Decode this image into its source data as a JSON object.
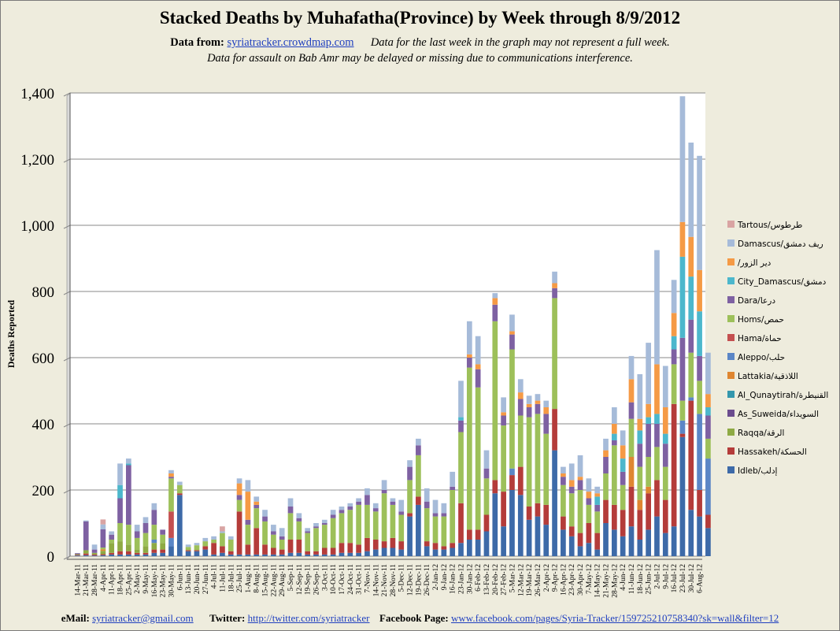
{
  "header": {
    "title": "Stacked Deaths by Muhafatha(Province) by Week through 8/9/2012",
    "data_from_label": "Data from:",
    "data_from_link": "syriatracker.crowdmap.com",
    "note1": "Data for the last week in the graph may not represent a full week.",
    "note2": "Data for assault on Bab Amr may be delayed or missing due to communications interference."
  },
  "footer": {
    "email_label": "eMail:",
    "email": "syriatracker@gmail.com",
    "twitter_label": "Twitter:",
    "twitter": "http://twitter.com/syriatracker",
    "facebook_label": "Facebook  Page:",
    "facebook": "www.facebook.com/pages/Syria-Tracker/159725210758340?sk=wall&filter=12"
  },
  "colors": {
    "Idleb": "#3d6aa8",
    "Hassakeh": "#b43c3a",
    "Raqqa": "#8eaa44",
    "As_Suweida": "#6b4c8e",
    "Al_Qunaytirah": "#3497ad",
    "Lattakia": "#df8631",
    "Aleppo": "#5b86c6",
    "Hama": "#c45050",
    "Homs": "#9dc05a",
    "Dara": "#7e61a2",
    "City_Damascus": "#4cb7cc",
    "Deir_Ezzor": "#f59a45",
    "Damascus": "#a6bbd9",
    "Tartous": "#d9a4a3",
    "plot_bg": "#ffffff",
    "frame_bg": "#eeecdd"
  },
  "chart_data": {
    "type": "bar",
    "stacked": true,
    "title": "Stacked Deaths by Muhafatha(Province) by Week through 8/9/2012",
    "ylabel": "Deaths Reported",
    "xlabel": "",
    "ylim": [
      0,
      1400
    ],
    "yticks": [
      0,
      200,
      400,
      600,
      800,
      1000,
      1200,
      1400
    ],
    "ytick_labels": [
      "0",
      "200",
      "400",
      "600",
      "800",
      "1,000",
      "1,200",
      "1,400"
    ],
    "legend_position": "right",
    "legend": [
      {
        "name": "Tartous/طرطوس",
        "key": "Tartous"
      },
      {
        "name": "Damascus/ريف دمشق",
        "key": "Damascus"
      },
      {
        "name": "/دير الزور",
        "key": "Deir_Ezzor"
      },
      {
        "name": "City_Damascus/دمشق",
        "key": "City_Damascus"
      },
      {
        "name": "Dara/درعا",
        "key": "Dara"
      },
      {
        "name": "Homs/حمص",
        "key": "Homs"
      },
      {
        "name": "Hama/حماة",
        "key": "Hama"
      },
      {
        "name": "Aleppo/حلب",
        "key": "Aleppo"
      },
      {
        "name": "Lattakia/اللاذقية",
        "key": "Lattakia"
      },
      {
        "name": "Al_Qunaytirah/القنيطرة",
        "key": "Al_Qunaytirah"
      },
      {
        "name": "As_Suweida/السويداء",
        "key": "As_Suweida"
      },
      {
        "name": "Raqqa/الرقة",
        "key": "Raqqa"
      },
      {
        "name": "Hassakeh/الحسكة",
        "key": "Hassakeh"
      },
      {
        "name": "Idleb/إدلب",
        "key": "Idleb"
      }
    ],
    "categories": [
      "14-Mar-11",
      "21-Mar-11",
      "28-Mar-11",
      "4-Apr-11",
      "11-Apr-11",
      "18-Apr-11",
      "25-Apr-11",
      "2-May-11",
      "9-May-11",
      "16-May-11",
      "23-May-11",
      "30-May-11",
      "6-Jun-11",
      "13-Jun-11",
      "20-Jun-11",
      "27-Jun-11",
      "4-Jul-11",
      "11-Jul-11",
      "18-Jul-11",
      "25-Jul-11",
      "1-Aug-11",
      "8-Aug-11",
      "15-Aug-11",
      "22-Aug-11",
      "29-Aug-11",
      "5-Sep-11",
      "12-Sep-11",
      "19-Sep-11",
      "26-Sep-11",
      "3-Oct-11",
      "10-Oct-11",
      "17-Oct-11",
      "24-Oct-11",
      "31-Oct-11",
      "7-Nov-11",
      "14-Nov-11",
      "21-Nov-11",
      "28-Nov-11",
      "5-Dec-11",
      "12-Dec-11",
      "19-Dec-11",
      "26-Dec-11",
      "2-Jan-12",
      "9-Jan-12",
      "16-Jan-12",
      "23-Jan-12",
      "30-Jan-12",
      "6-Feb-12",
      "13-Feb-12",
      "20-Feb-12",
      "27-Feb-12",
      "5-Mar-12",
      "12-Mar-12",
      "19-Mar-12",
      "26-Mar-12",
      "2-Apr-12",
      "9-Apr-12",
      "16-Apr-12",
      "23-Apr-12",
      "30-Apr-12",
      "7-May-12",
      "14-May-12",
      "21-May-12",
      "28-May-12",
      "4-Jun-12",
      "11-Jun-12",
      "18-Jun-12",
      "25-Jun-12",
      "2-Jul-12",
      "9-Jul-12",
      "16-Jul-12",
      "23-Jul-12",
      "30-Jul-12",
      "6-Aug-12"
    ],
    "weekly_bars": [
      {
        "Idleb": 2,
        "Hassakeh": 2,
        "Raqqa": 2,
        "Dara": 3
      },
      {
        "Idleb": 3,
        "Hassakeh": 5,
        "Raqqa": 10,
        "Dara": 87,
        "Damascus": 3
      },
      {
        "Idleb": 2,
        "Hassakeh": 3,
        "Raqqa": 5,
        "Dara": 10,
        "Damascus": 15
      },
      {
        "Idleb": 3,
        "Hassakeh": 3,
        "Raqqa": 10,
        "Lattakia": 5,
        "Homs": 5,
        "Dara": 55,
        "Damascus": 15,
        "Tartous": 15
      },
      {
        "Idleb": 5,
        "Hassakeh": 5,
        "Raqqa": 30,
        "Homs": 10,
        "Dara": 15,
        "Damascus": 10
      },
      {
        "Idleb": 5,
        "Hassakeh": 10,
        "Raqqa": 30,
        "Homs": 55,
        "Dara": 75,
        "City_Damascus": 40,
        "Damascus": 65
      },
      {
        "Idleb": 5,
        "Hassakeh": 10,
        "Raqqa": 20,
        "Homs": 60,
        "Dara": 180,
        "City_Damascus": 5,
        "Damascus": 15
      },
      {
        "Idleb": 5,
        "Hassakeh": 5,
        "Raqqa": 10,
        "Homs": 35,
        "Dara": 20,
        "Damascus": 20
      },
      {
        "Idleb": 5,
        "Hassakeh": 5,
        "Raqqa": 20,
        "Homs": 40,
        "Dara": 30,
        "Damascus": 18
      },
      {
        "Idleb": 10,
        "Hassakeh": 10,
        "Raqqa": 20,
        "Aleppo": 10,
        "Homs": 45,
        "Dara": 45,
        "Damascus": 20
      },
      {
        "Idleb": 10,
        "Hassakeh": 10,
        "Raqqa": 20,
        "Homs": 25,
        "Dara": 15
      },
      {
        "Idleb": 30,
        "Aleppo": 25,
        "Hama": 80,
        "Homs": 100,
        "Dara": 5,
        "Deir_Ezzor": 10,
        "Damascus": 10
      },
      {
        "Idleb": 185,
        "Hassakeh": 5,
        "Homs": 25,
        "Damascus": 10
      },
      {
        "Idleb": 15,
        "Hassakeh": 3,
        "Homs": 10,
        "Damascus": 7
      },
      {
        "Idleb": 15,
        "Hassakeh": 3,
        "Homs": 15,
        "Damascus": 7
      },
      {
        "Idleb": 20,
        "Hassakeh": 10,
        "Homs": 15,
        "Damascus": 10
      },
      {
        "Idleb": 5,
        "Hassakeh": 35,
        "Homs": 10,
        "Damascus": 10
      },
      {
        "Idleb": 10,
        "Hassakeh": 20,
        "Homs": 40,
        "Damascus": 5,
        "Tartous": 15
      },
      {
        "Idleb": 5,
        "Hassakeh": 10,
        "Homs": 35,
        "Damascus": 10
      },
      {
        "Idleb": 5,
        "Hassakeh": 130,
        "Homs": 35,
        "Dara": 15,
        "Deir_Ezzor": 35,
        "Damascus": 15
      },
      {
        "Idleb": 5,
        "Hassakeh": 30,
        "Homs": 60,
        "Dara": 15,
        "Deir_Ezzor": 85,
        "Damascus": 35
      },
      {
        "Idleb": 5,
        "Hassakeh": 80,
        "Homs": 60,
        "Dara": 10,
        "Deir_Ezzor": 10,
        "Damascus": 15
      },
      {
        "Idleb": 5,
        "Hassakeh": 30,
        "Homs": 70,
        "Dara": 15,
        "Damascus": 20
      },
      {
        "Idleb": 5,
        "Hassakeh": 20,
        "Homs": 40,
        "Dara": 10,
        "Damascus": 20
      },
      {
        "Idleb": 5,
        "Hassakeh": 15,
        "Homs": 30,
        "Dara": 10,
        "Damascus": 25
      },
      {
        "Idleb": 10,
        "Hassakeh": 40,
        "Homs": 80,
        "Dara": 20,
        "Damascus": 25
      },
      {
        "Idleb": 10,
        "Hassakeh": 40,
        "Homs": 55,
        "Dara": 10,
        "Damascus": 15
      },
      {
        "Idleb": 5,
        "Hassakeh": 10,
        "Homs": 55,
        "Dara": 5,
        "Damascus": 10
      },
      {
        "Idleb": 5,
        "Hassakeh": 10,
        "Homs": 70,
        "Dara": 5,
        "Damascus": 10
      },
      {
        "Idleb": 5,
        "Hassakeh": 20,
        "Homs": 70,
        "Dara": 5,
        "Damascus": 10
      },
      {
        "Idleb": 5,
        "Hassakeh": 20,
        "Homs": 90,
        "Dara": 10,
        "Damascus": 15
      },
      {
        "Idleb": 10,
        "Hassakeh": 30,
        "Homs": 90,
        "Dara": 10,
        "Damascus": 10
      },
      {
        "Idleb": 10,
        "Hassakeh": 30,
        "Homs": 100,
        "Dara": 10,
        "Damascus": 10
      },
      {
        "Idleb": 10,
        "Hassakeh": 25,
        "Homs": 120,
        "Dara": 10,
        "Damascus": 10
      },
      {
        "Idleb": 15,
        "Hassakeh": 40,
        "Homs": 100,
        "Dara": 30,
        "Damascus": 20
      },
      {
        "Idleb": 20,
        "Hassakeh": 30,
        "Homs": 85,
        "Dara": 10,
        "Damascus": 15
      },
      {
        "Idleb": 25,
        "Hassakeh": 20,
        "Homs": 145,
        "Dara": 10,
        "Damascus": 30
      },
      {
        "Idleb": 25,
        "Hassakeh": 30,
        "Homs": 100,
        "Dara": 10,
        "Damascus": 10
      },
      {
        "Idleb": 20,
        "Hassakeh": 25,
        "Homs": 80,
        "Dara": 10,
        "Damascus": 35
      },
      {
        "Idleb": 120,
        "Hassakeh": 10,
        "Homs": 100,
        "Dara": 40,
        "Damascus": 20
      },
      {
        "Idleb": 155,
        "Hassakeh": 25,
        "Homs": 125,
        "Dara": 30,
        "Damascus": 20
      },
      {
        "Idleb": 30,
        "Hassakeh": 15,
        "Homs": 100,
        "Dara": 20,
        "Damascus": 40
      },
      {
        "Idleb": 20,
        "Hassakeh": 20,
        "Homs": 80,
        "Dara": 10,
        "Damascus": 40
      },
      {
        "Idleb": 20,
        "Hassakeh": 10,
        "Homs": 90,
        "Dara": 10,
        "Damascus": 30
      },
      {
        "Idleb": 25,
        "Hassakeh": 15,
        "Homs": 160,
        "Dara": 10,
        "Damascus": 45
      },
      {
        "Idleb": 40,
        "Hassakeh": 120,
        "Homs": 215,
        "Dara": 35,
        "City_Damascus": 10,
        "Damascus": 110
      },
      {
        "Idleb": 50,
        "Hassakeh": 30,
        "Homs": 490,
        "Dara": 30,
        "Deir_Ezzor": 10,
        "Damascus": 100
      },
      {
        "Idleb": 50,
        "Hassakeh": 30,
        "Homs": 430,
        "Dara": 55,
        "Deir_Ezzor": 15,
        "Damascus": 85
      },
      {
        "Idleb": 75,
        "Hassakeh": 50,
        "Homs": 110,
        "Dara": 30,
        "Damascus": 55
      },
      {
        "Idleb": 190,
        "Hassakeh": 40,
        "Homs": 480,
        "Dara": 50,
        "Deir_Ezzor": 20,
        "Damascus": 15
      },
      {
        "Idleb": 90,
        "Hassakeh": 105,
        "Homs": 200,
        "Dara": 30,
        "Deir_Ezzor": 10,
        "Damascus": 45
      },
      {
        "Idleb": 200,
        "Aleppo": 20,
        "Hassakeh": 45,
        "Homs": 360,
        "Dara": 45,
        "Deir_Ezzor": 10,
        "Damascus": 50
      },
      {
        "Idleb": 185,
        "Hassakeh": 85,
        "Homs": 155,
        "Dara": 50,
        "Deir_Ezzor": 20,
        "Damascus": 40
      },
      {
        "Idleb": 110,
        "Hassakeh": 40,
        "Homs": 270,
        "Dara": 30,
        "Deir_Ezzor": 10,
        "Damascus": 25
      },
      {
        "Idleb": 120,
        "Hassakeh": 40,
        "Homs": 270,
        "Dara": 30,
        "Deir_Ezzor": 10,
        "Damascus": 20
      },
      {
        "Idleb": 95,
        "Hassakeh": 60,
        "Homs": 215,
        "Dara": 60,
        "Deir_Ezzor": 20,
        "Damascus": 20
      },
      {
        "Idleb": 320,
        "Hassakeh": 125,
        "Homs": 335,
        "Dara": 30,
        "Deir_Ezzor": 15,
        "Damascus": 35
      },
      {
        "Idleb": 80,
        "Hassakeh": 40,
        "Homs": 95,
        "Dara": 25,
        "Deir_Ezzor": 10,
        "Damascus": 20
      },
      {
        "Idleb": 60,
        "Hassakeh": 30,
        "Homs": 100,
        "Dara": 20,
        "Deir_Ezzor": 20,
        "Damascus": 50
      },
      {
        "Idleb": 30,
        "Hassakeh": 40,
        "Homs": 130,
        "Dara": 30,
        "Deir_Ezzor": 10,
        "Damascus": 65
      },
      {
        "Idleb": 40,
        "Hassakeh": 60,
        "Homs": 55,
        "Dara": 20,
        "Deir_Ezzor": 20,
        "Damascus": 40
      },
      {
        "Idleb": 20,
        "Hassakeh": 50,
        "Homs": 65,
        "Dara": 20,
        "City_Damascus": 25,
        "Deir_Ezzor": 10,
        "Damascus": 20
      },
      {
        "Idleb": 100,
        "Hassakeh": 70,
        "Homs": 80,
        "Dara": 50,
        "Deir_Ezzor": 20,
        "Damascus": 35
      },
      {
        "Idleb": 80,
        "Hassakeh": 75,
        "Homs": 180,
        "Dara": 15,
        "City_Damascus": 20,
        "Deir_Ezzor": 30,
        "Damascus": 50
      },
      {
        "Idleb": 60,
        "Hassakeh": 80,
        "Homs": 75,
        "Dara": 40,
        "City_Damascus": 40,
        "Deir_Ezzor": 40,
        "Damascus": 45
      },
      {
        "Idleb": 90,
        "Lattakia": 90,
        "Hassakeh": 120,
        "Homs": 115,
        "Dara": 50,
        "Deir_Ezzor": 70,
        "Damascus": 70
      },
      {
        "Idleb": 50,
        "Lattakia": 30,
        "Hassakeh": 90,
        "Homs": 100,
        "Dara": 70,
        "City_Damascus": 40,
        "Deir_Ezzor": 35,
        "Damascus": 135
      },
      {
        "Idleb": 80,
        "Lattakia": 20,
        "Hassakeh": 110,
        "Homs": 90,
        "Dara": 100,
        "City_Damascus": 20,
        "Deir_Ezzor": 40,
        "Damascus": 185
      },
      {
        "Idleb": 120,
        "Hassakeh": 110,
        "Homs": 100,
        "Dara": 70,
        "City_Damascus": 30,
        "Deir_Ezzor": 150,
        "Damascus": 345
      },
      {
        "Idleb": 70,
        "Hassakeh": 100,
        "Homs": 100,
        "Dara": 70,
        "City_Damascus": 30,
        "Deir_Ezzor": 80,
        "Damascus": 125
      },
      {
        "Idleb": 90,
        "Hassakeh": 370,
        "Homs": 120,
        "Dara": 45,
        "City_Damascus": 40,
        "Deir_Ezzor": 70,
        "Damascus": 100
      },
      {
        "Idleb": 360,
        "Aleppo": 40,
        "Hassakeh": 10,
        "Homs": 60,
        "Dara": 190,
        "City_Damascus": 245,
        "Deir_Ezzor": 105,
        "Damascus": 380
      },
      {
        "Idleb": 140,
        "Aleppo": 10,
        "Hassakeh": 330,
        "Homs": 135,
        "Dara": 100,
        "City_Damascus": 130,
        "Deir_Ezzor": 120,
        "Damascus": 285
      },
      {
        "Idleb": 120,
        "Aleppo": 230,
        "Hassakeh": 80,
        "Homs": 100,
        "Dara": 75,
        "City_Damascus": 135,
        "Deir_Ezzor": 125,
        "Damascus": 345
      },
      {
        "Idleb": 85,
        "Aleppo": 170,
        "Hassakeh": 40,
        "Homs": 60,
        "Dara": 70,
        "City_Damascus": 25,
        "Deir_Ezzor": 40,
        "Damascus": 125
      }
    ]
  }
}
